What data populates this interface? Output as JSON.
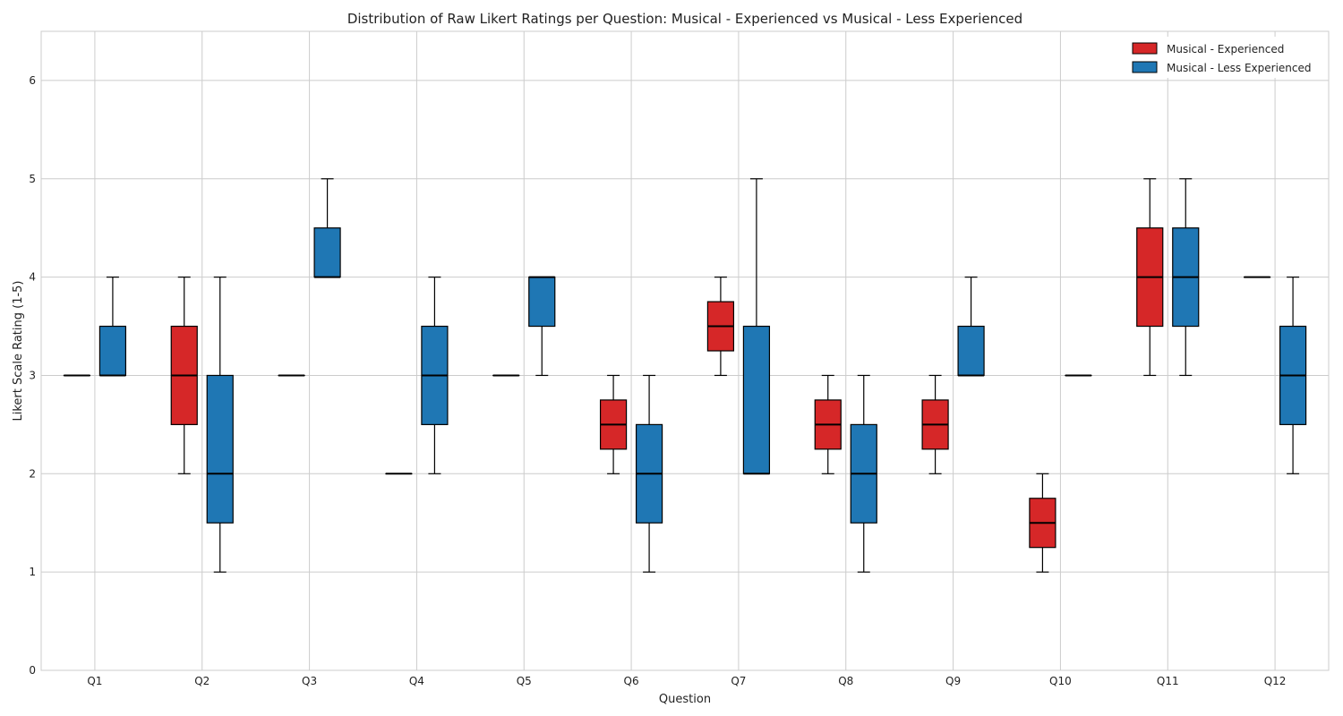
{
  "chart_data": {
    "type": "box",
    "title": "Distribution of Raw Likert Ratings per Question: Musical - Experienced vs Musical - Less Experienced",
    "xlabel": "Question",
    "ylabel": "Likert Scale Rating (1-5)",
    "ylim": [
      0,
      6.5
    ],
    "yticks": [
      0,
      1,
      2,
      3,
      4,
      5,
      6
    ],
    "grid": true,
    "legend_position": "top-right",
    "categories": [
      "Q1",
      "Q2",
      "Q3",
      "Q4",
      "Q5",
      "Q6",
      "Q7",
      "Q8",
      "Q9",
      "Q10",
      "Q11",
      "Q12"
    ],
    "series": [
      {
        "name": "Musical - Experienced",
        "color": "#d62728",
        "boxes": [
          {
            "min": 3,
            "q1": 3,
            "median": 3,
            "q3": 3,
            "max": 3
          },
          {
            "min": 2,
            "q1": 2.5,
            "median": 3,
            "q3": 3.5,
            "max": 4
          },
          {
            "min": 3,
            "q1": 3,
            "median": 3,
            "q3": 3,
            "max": 3
          },
          {
            "min": 2,
            "q1": 2,
            "median": 2,
            "q3": 2,
            "max": 2
          },
          {
            "min": 3,
            "q1": 3,
            "median": 3,
            "q3": 3,
            "max": 3
          },
          {
            "min": 2,
            "q1": 2.25,
            "median": 2.5,
            "q3": 2.75,
            "max": 3
          },
          {
            "min": 3,
            "q1": 3.25,
            "median": 3.5,
            "q3": 3.75,
            "max": 4
          },
          {
            "min": 2,
            "q1": 2.25,
            "median": 2.5,
            "q3": 2.75,
            "max": 3
          },
          {
            "min": 2,
            "q1": 2.25,
            "median": 2.5,
            "q3": 2.75,
            "max": 3
          },
          {
            "min": 1,
            "q1": 1.25,
            "median": 1.5,
            "q3": 1.75,
            "max": 2
          },
          {
            "min": 3,
            "q1": 3.5,
            "median": 4,
            "q3": 4.5,
            "max": 5
          },
          {
            "min": 4,
            "q1": 4,
            "median": 4,
            "q3": 4,
            "max": 4
          }
        ]
      },
      {
        "name": "Musical - Less Experienced",
        "color": "#1f77b4",
        "boxes": [
          {
            "min": 3,
            "q1": 3,
            "median": 3,
            "q3": 3.5,
            "max": 4
          },
          {
            "min": 1,
            "q1": 1.5,
            "median": 2,
            "q3": 3,
            "max": 4
          },
          {
            "min": 4,
            "q1": 4,
            "median": 4,
            "q3": 4.5,
            "max": 5
          },
          {
            "min": 2,
            "q1": 2.5,
            "median": 3,
            "q3": 3.5,
            "max": 4
          },
          {
            "min": 3,
            "q1": 3.5,
            "median": 4,
            "q3": 4,
            "max": 4
          },
          {
            "min": 1,
            "q1": 1.5,
            "median": 2,
            "q3": 2.5,
            "max": 3
          },
          {
            "min": 2,
            "q1": 2,
            "median": 2,
            "q3": 3.5,
            "max": 5
          },
          {
            "min": 1,
            "q1": 1.5,
            "median": 2,
            "q3": 2.5,
            "max": 3
          },
          {
            "min": 3,
            "q1": 3,
            "median": 3,
            "q3": 3.5,
            "max": 4
          },
          {
            "min": 3,
            "q1": 3,
            "median": 3,
            "q3": 3,
            "max": 3
          },
          {
            "min": 3,
            "q1": 3.5,
            "median": 4,
            "q3": 4.5,
            "max": 5
          },
          {
            "min": 2,
            "q1": 2.5,
            "median": 3,
            "q3": 3.5,
            "max": 4
          }
        ]
      }
    ]
  }
}
